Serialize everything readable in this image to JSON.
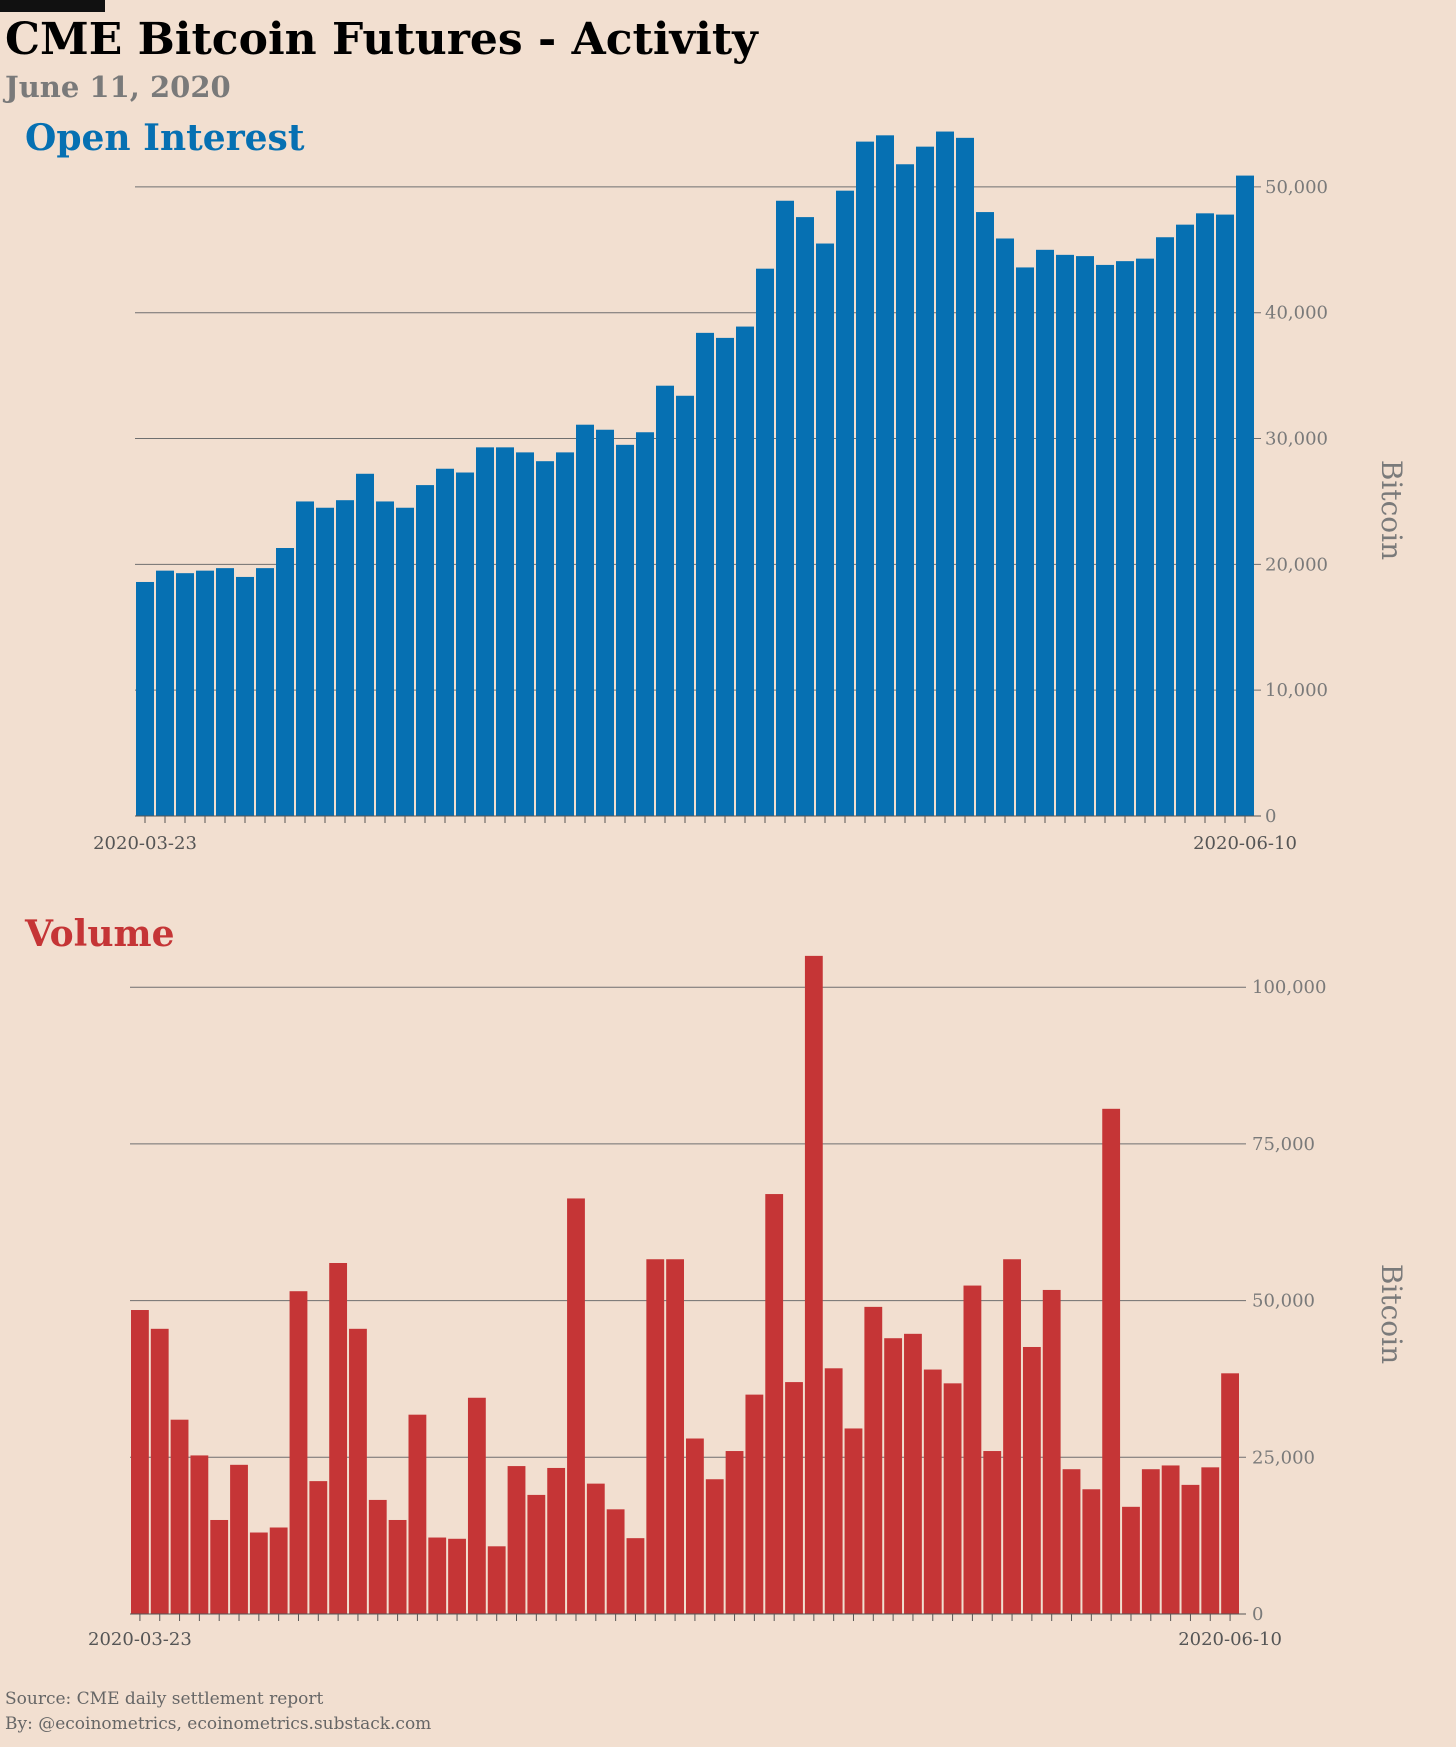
{
  "title": "CME Bitcoin Futures - Activity",
  "subtitle": "June 11, 2020",
  "footer": {
    "source": "Source: CME daily settlement report",
    "by": "By: @ecoinometrics, ecoinometrics.substack.com"
  },
  "colors": {
    "background": "#f2dfd0",
    "open_interest": "#0670b2",
    "volume": "#c53536",
    "axis_text": "#7a7a7a"
  },
  "chart_data": [
    {
      "type": "bar",
      "title": "Open Interest",
      "ylabel": "Bitcoin",
      "ylim": [
        0,
        55000
      ],
      "yticks": [
        0,
        10000,
        20000,
        30000,
        40000,
        50000
      ],
      "ytick_labels": [
        "0",
        "10,000",
        "20,000",
        "30,000",
        "40,000",
        "50,000"
      ],
      "x_start_label": "2020-03-23",
      "x_end_label": "2020-06-10",
      "axis_position": "right",
      "grid": "horizontal",
      "values": [
        18600,
        19500,
        19300,
        19500,
        19700,
        19000,
        19700,
        21300,
        25000,
        24500,
        25100,
        27200,
        25000,
        24500,
        26300,
        27600,
        27300,
        29300,
        29300,
        28900,
        28200,
        28900,
        31100,
        30700,
        29500,
        30500,
        34200,
        33400,
        38400,
        38000,
        38900,
        43500,
        48900,
        47600,
        45500,
        49700,
        53600,
        54100,
        51800,
        53200,
        54400,
        53900,
        48000,
        45900,
        43600,
        45000,
        44600,
        44500,
        43800,
        44100,
        44300,
        46000,
        47000,
        47900,
        47800,
        50900
      ]
    },
    {
      "type": "bar",
      "title": "Volume",
      "ylabel": "Bitcoin",
      "ylim": [
        0,
        112000
      ],
      "yticks": [
        0,
        25000,
        50000,
        75000,
        100000
      ],
      "ytick_labels": [
        "0",
        "25,000",
        "50,000",
        "75,000",
        "100,000"
      ],
      "x_start_label": "2020-03-23",
      "x_end_label": "2020-06-10",
      "axis_position": "right",
      "grid": "horizontal",
      "values": [
        48500,
        45500,
        31000,
        25300,
        15000,
        23800,
        13000,
        13800,
        51500,
        21200,
        56000,
        45500,
        18200,
        15000,
        31800,
        12200,
        12000,
        34500,
        10800,
        23600,
        19000,
        23300,
        66300,
        20800,
        16700,
        12100,
        56600,
        56600,
        28000,
        21500,
        26000,
        35000,
        67000,
        37000,
        105000,
        39200,
        29600,
        49000,
        44000,
        44700,
        39000,
        36800,
        52400,
        26000,
        56600,
        42600,
        51700,
        23100,
        19900,
        80600,
        17100,
        23100,
        23700,
        20600,
        23400,
        38400
      ]
    }
  ]
}
